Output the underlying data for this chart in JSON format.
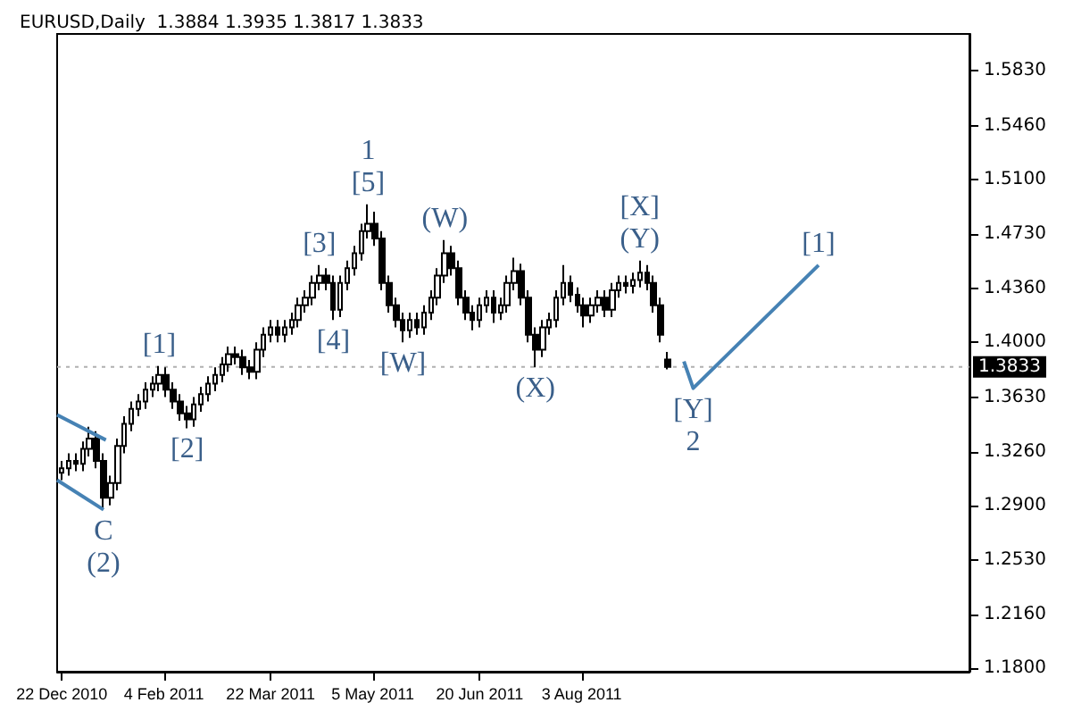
{
  "chart_data": {
    "type": "candlestick",
    "title": "EURUSD,Daily  1.3884 1.3935 1.3817 1.3833",
    "marker": "none",
    "xlim": [
      "2010-12-20",
      "2012-01-17"
    ],
    "xticks": [
      {
        "value": "2010-12-22",
        "label": "22 Dec 2010"
      },
      {
        "value": "2011-02-04",
        "label": "4 Feb 2011"
      },
      {
        "value": "2011-03-22",
        "label": "22 Mar 2011"
      },
      {
        "value": "2011-05-05",
        "label": "5 May 2011"
      },
      {
        "value": "2011-06-20",
        "label": "20 Jun 2011"
      },
      {
        "value": "2011-08-03",
        "label": "3 Aug 2011"
      }
    ],
    "ylim": [
      1.1777,
      1.608
    ],
    "yticks": [
      {
        "value": 1.18,
        "label": "1.1800"
      },
      {
        "value": 1.216,
        "label": "1.2160"
      },
      {
        "value": 1.253,
        "label": "1.2530"
      },
      {
        "value": 1.29,
        "label": "1.2900"
      },
      {
        "value": 1.326,
        "label": "1.3260"
      },
      {
        "value": 1.363,
        "label": "1.3630"
      },
      {
        "value": 1.4,
        "label": "1.4000"
      },
      {
        "value": 1.436,
        "label": "1.4360"
      },
      {
        "value": 1.473,
        "label": "1.4730"
      },
      {
        "value": 1.51,
        "label": "1.5100"
      },
      {
        "value": 1.546,
        "label": "1.5460"
      },
      {
        "value": 1.583,
        "label": "1.5830"
      }
    ],
    "series": [
      {
        "type": "candlestick",
        "color": "#000000",
        "x": [
          "2010-12-22",
          "2010-12-25",
          "2010-12-28",
          "2010-12-31",
          "2011-01-03",
          "2011-01-06",
          "2011-01-09",
          "2011-01-12",
          "2011-01-15",
          "2011-01-18",
          "2011-01-21",
          "2011-01-24",
          "2011-01-27",
          "2011-01-30",
          "2011-02-02",
          "2011-02-05",
          "2011-02-08",
          "2011-02-11",
          "2011-02-14",
          "2011-02-17",
          "2011-02-20",
          "2011-02-23",
          "2011-02-26",
          "2011-03-01",
          "2011-03-04",
          "2011-03-07",
          "2011-03-10",
          "2011-03-13",
          "2011-03-16",
          "2011-03-19",
          "2011-03-22",
          "2011-03-25",
          "2011-03-28",
          "2011-03-31",
          "2011-04-03",
          "2011-04-06",
          "2011-04-09",
          "2011-04-12",
          "2011-04-15",
          "2011-04-18",
          "2011-04-21",
          "2011-04-24",
          "2011-04-27",
          "2011-04-30",
          "2011-05-03",
          "2011-05-06",
          "2011-05-09",
          "2011-05-12",
          "2011-05-15",
          "2011-05-18",
          "2011-05-21",
          "2011-05-24",
          "2011-05-27",
          "2011-05-30",
          "2011-06-02",
          "2011-06-05",
          "2011-06-08",
          "2011-06-11",
          "2011-06-14",
          "2011-06-17",
          "2011-06-20",
          "2011-06-23",
          "2011-06-26",
          "2011-06-29",
          "2011-07-02",
          "2011-07-05",
          "2011-07-08",
          "2011-07-11",
          "2011-07-14",
          "2011-07-17",
          "2011-07-20",
          "2011-07-23",
          "2011-07-26",
          "2011-07-29",
          "2011-08-01",
          "2011-08-04",
          "2011-08-07",
          "2011-08-10",
          "2011-08-13",
          "2011-08-16",
          "2011-08-19",
          "2011-08-22",
          "2011-08-25",
          "2011-08-28",
          "2011-08-31",
          "2011-09-03",
          "2011-09-06",
          "2011-09-09"
        ],
        "ohlc": [
          [
            1.312,
            1.32,
            1.307,
            1.315
          ],
          [
            1.315,
            1.325,
            1.31,
            1.32
          ],
          [
            1.32,
            1.325,
            1.313,
            1.318
          ],
          [
            1.318,
            1.333,
            1.313,
            1.328
          ],
          [
            1.328,
            1.343,
            1.323,
            1.335
          ],
          [
            1.335,
            1.34,
            1.315,
            1.32
          ],
          [
            1.32,
            1.325,
            1.287,
            1.295
          ],
          [
            1.295,
            1.31,
            1.29,
            1.305
          ],
          [
            1.305,
            1.335,
            1.3,
            1.33
          ],
          [
            1.33,
            1.35,
            1.325,
            1.345
          ],
          [
            1.345,
            1.36,
            1.34,
            1.355
          ],
          [
            1.355,
            1.365,
            1.35,
            1.36
          ],
          [
            1.36,
            1.373,
            1.355,
            1.368
          ],
          [
            1.368,
            1.377,
            1.363,
            1.372
          ],
          [
            1.372,
            1.384,
            1.367,
            1.378
          ],
          [
            1.378,
            1.383,
            1.363,
            1.368
          ],
          [
            1.368,
            1.373,
            1.355,
            1.36
          ],
          [
            1.36,
            1.365,
            1.347,
            1.352
          ],
          [
            1.352,
            1.357,
            1.342,
            1.348
          ],
          [
            1.348,
            1.363,
            1.343,
            1.358
          ],
          [
            1.358,
            1.37,
            1.353,
            1.365
          ],
          [
            1.365,
            1.377,
            1.36,
            1.372
          ],
          [
            1.372,
            1.383,
            1.367,
            1.378
          ],
          [
            1.378,
            1.39,
            1.373,
            1.385
          ],
          [
            1.385,
            1.397,
            1.38,
            1.392
          ],
          [
            1.392,
            1.397,
            1.385,
            1.39
          ],
          [
            1.39,
            1.395,
            1.378,
            1.383
          ],
          [
            1.383,
            1.388,
            1.375,
            1.38
          ],
          [
            1.38,
            1.4,
            1.375,
            1.395
          ],
          [
            1.395,
            1.41,
            1.39,
            1.405
          ],
          [
            1.405,
            1.415,
            1.4,
            1.41
          ],
          [
            1.41,
            1.415,
            1.4,
            1.405
          ],
          [
            1.405,
            1.415,
            1.4,
            1.41
          ],
          [
            1.41,
            1.42,
            1.405,
            1.415
          ],
          [
            1.415,
            1.43,
            1.41,
            1.425
          ],
          [
            1.425,
            1.435,
            1.42,
            1.43
          ],
          [
            1.43,
            1.445,
            1.425,
            1.44
          ],
          [
            1.44,
            1.452,
            1.435,
            1.445
          ],
          [
            1.445,
            1.45,
            1.435,
            1.44
          ],
          [
            1.44,
            1.445,
            1.415,
            1.422
          ],
          [
            1.422,
            1.445,
            1.417,
            1.44
          ],
          [
            1.44,
            1.455,
            1.435,
            1.45
          ],
          [
            1.45,
            1.465,
            1.445,
            1.46
          ],
          [
            1.46,
            1.48,
            1.455,
            1.475
          ],
          [
            1.475,
            1.493,
            1.47,
            1.48
          ],
          [
            1.48,
            1.488,
            1.465,
            1.47
          ],
          [
            1.47,
            1.475,
            1.435,
            1.44
          ],
          [
            1.44,
            1.445,
            1.42,
            1.425
          ],
          [
            1.425,
            1.43,
            1.41,
            1.415
          ],
          [
            1.415,
            1.42,
            1.4,
            1.408
          ],
          [
            1.408,
            1.42,
            1.403,
            1.415
          ],
          [
            1.415,
            1.42,
            1.405,
            1.41
          ],
          [
            1.41,
            1.425,
            1.405,
            1.42
          ],
          [
            1.42,
            1.435,
            1.415,
            1.43
          ],
          [
            1.43,
            1.45,
            1.425,
            1.445
          ],
          [
            1.445,
            1.469,
            1.44,
            1.46
          ],
          [
            1.46,
            1.465,
            1.445,
            1.45
          ],
          [
            1.45,
            1.455,
            1.425,
            1.43
          ],
          [
            1.43,
            1.435,
            1.415,
            1.42
          ],
          [
            1.42,
            1.425,
            1.408,
            1.415
          ],
          [
            1.415,
            1.43,
            1.41,
            1.425
          ],
          [
            1.425,
            1.435,
            1.42,
            1.43
          ],
          [
            1.43,
            1.435,
            1.413,
            1.42
          ],
          [
            1.42,
            1.43,
            1.415,
            1.425
          ],
          [
            1.425,
            1.445,
            1.42,
            1.44
          ],
          [
            1.44,
            1.457,
            1.435,
            1.448
          ],
          [
            1.448,
            1.453,
            1.425,
            1.43
          ],
          [
            1.43,
            1.435,
            1.4,
            1.405
          ],
          [
            1.405,
            1.41,
            1.383,
            1.395
          ],
          [
            1.395,
            1.415,
            1.39,
            1.41
          ],
          [
            1.41,
            1.42,
            1.405,
            1.415
          ],
          [
            1.415,
            1.435,
            1.41,
            1.43
          ],
          [
            1.43,
            1.452,
            1.425,
            1.44
          ],
          [
            1.44,
            1.445,
            1.427,
            1.432
          ],
          [
            1.432,
            1.437,
            1.42,
            1.425
          ],
          [
            1.425,
            1.43,
            1.41,
            1.418
          ],
          [
            1.418,
            1.43,
            1.413,
            1.425
          ],
          [
            1.425,
            1.435,
            1.42,
            1.43
          ],
          [
            1.43,
            1.435,
            1.417,
            1.422
          ],
          [
            1.422,
            1.44,
            1.417,
            1.435
          ],
          [
            1.435,
            1.445,
            1.43,
            1.44
          ],
          [
            1.44,
            1.445,
            1.433,
            1.438
          ],
          [
            1.438,
            1.447,
            1.433,
            1.442
          ],
          [
            1.442,
            1.455,
            1.437,
            1.447
          ],
          [
            1.447,
            1.452,
            1.435,
            1.44
          ],
          [
            1.44,
            1.445,
            1.42,
            1.425
          ],
          [
            1.425,
            1.43,
            1.4,
            1.405
          ],
          [
            1.3884,
            1.3935,
            1.3817,
            1.3833
          ]
        ]
      },
      {
        "type": "line",
        "color": "#4682b4",
        "x": [
          "2011-09-16",
          "2011-09-20",
          "2011-11-13"
        ],
        "values": [
          1.387,
          1.369,
          1.452
        ]
      },
      {
        "type": "line",
        "color": "#4682b4",
        "x": [
          "2010-12-20",
          "2011-01-10"
        ],
        "values": [
          1.351,
          1.334
        ]
      },
      {
        "type": "line",
        "color": "#4682b4",
        "x": [
          "2010-12-20",
          "2011-01-09"
        ],
        "values": [
          1.307,
          1.287
        ]
      }
    ],
    "ref_lines": [
      {
        "axis": "y",
        "value": 1.3833,
        "label": "1.3833"
      }
    ],
    "annotations": [
      {
        "text": "[5]",
        "x": "2011-05-03",
        "y": 1.493
      },
      {
        "text": "1",
        "x": "2011-05-03",
        "y": 1.493
      },
      {
        "text": "[3]",
        "x": "2011-04-12",
        "y": 1.452
      },
      {
        "text": "[4]",
        "x": "2011-04-18",
        "y": 1.415
      },
      {
        "text": "[1]",
        "x": "2011-02-02",
        "y": 1.384
      },
      {
        "text": "[2]",
        "x": "2011-02-14",
        "y": 1.342
      },
      {
        "text": "C",
        "x": "2011-01-09",
        "y": 1.287
      },
      {
        "text": "(2)",
        "x": "2011-01-09",
        "y": 1.287
      },
      {
        "text": "[W]",
        "x": "2011-05-18",
        "y": 1.4
      },
      {
        "text": "(W)",
        "x": "2011-06-05",
        "y": 1.469
      },
      {
        "text": "(X)",
        "x": "2011-07-14",
        "y": 1.383
      },
      {
        "text": "(Y)",
        "x": "2011-08-28",
        "y": 1.455
      },
      {
        "text": "[X]",
        "x": "2011-08-28",
        "y": 1.455
      },
      {
        "text": "[Y]",
        "x": "2011-09-20",
        "y": 1.369
      },
      {
        "text": "2",
        "x": "2011-09-20",
        "y": 1.369
      },
      {
        "text": "[1]",
        "x": "2011-11-13",
        "y": 1.452
      }
    ]
  }
}
